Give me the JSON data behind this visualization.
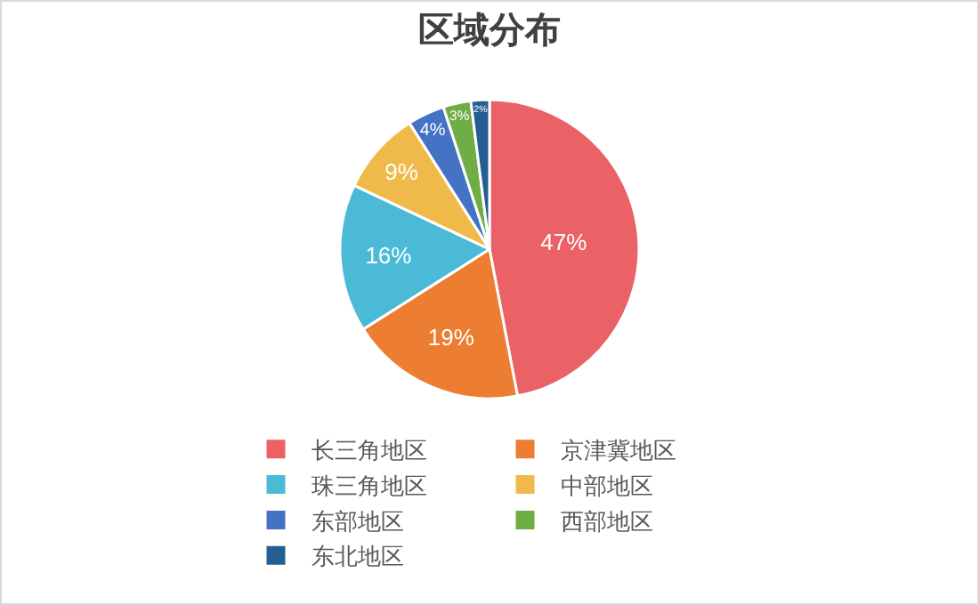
{
  "chart_data": {
    "type": "pie",
    "title": "区域分布",
    "categories": [
      "长三角地区",
      "京津冀地区",
      "珠三角地区",
      "中部地区",
      "东部地区",
      "西部地区",
      "东北地区"
    ],
    "values": [
      47,
      19,
      16,
      9,
      4,
      3,
      2
    ],
    "value_labels": [
      "47%",
      "19%",
      "16%",
      "9%",
      "4%",
      "3%",
      "2%"
    ],
    "colors": [
      "#ea6166",
      "#ed7d31",
      "#4bbad6",
      "#f0ba4a",
      "#4472c4",
      "#70ad47",
      "#255e91"
    ],
    "legend": "bottom"
  }
}
